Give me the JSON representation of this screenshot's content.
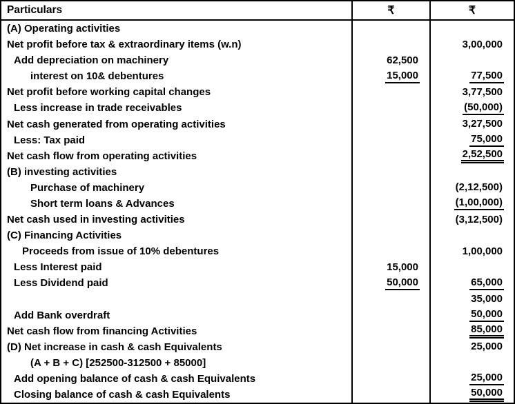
{
  "table": {
    "header": {
      "particulars": "Particulars",
      "amount_col1": "₹",
      "amount_col2": "₹"
    },
    "rows": [
      {
        "label": "(A) Operating activities",
        "indent": 0
      },
      {
        "label": "Net profit before tax & extraordinary items (w.n)",
        "indent": 0,
        "col2": "3,00,000"
      },
      {
        "label": "Add depreciation on machinery",
        "indent": 1,
        "col1": "62,500"
      },
      {
        "label": "interest on 10& debentures",
        "indent": 3,
        "col1": "15,000",
        "col1_u": "single",
        "col2": "77,500",
        "col2_u": "single"
      },
      {
        "label": "Net profit before working capital changes",
        "indent": 0,
        "col2": "3,77,500"
      },
      {
        "label": "Less increase in trade receivables",
        "indent": 1,
        "col2": "(50,000)",
        "col2_u": "single"
      },
      {
        "label": "Net cash generated from operating activities",
        "indent": 0,
        "col2": "3,27,500"
      },
      {
        "label": "Less: Tax paid",
        "indent": 1,
        "col2": "75,000",
        "col2_u": "single"
      },
      {
        "label": "Net cash flow from operating activities",
        "indent": 0,
        "col2": "2,52,500",
        "col2_u": "double"
      },
      {
        "label": "(B) investing activities",
        "indent": 0
      },
      {
        "label": "Purchase of machinery",
        "indent": 3,
        "col2": "(2,12,500)"
      },
      {
        "label": "Short term loans & Advances",
        "indent": 3,
        "col2": "(1,00,000)",
        "col2_u": "single"
      },
      {
        "label": "Net cash used in investing activities",
        "indent": 0,
        "col2": "(3,12,500)"
      },
      {
        "label": "(C) Financing Activities",
        "indent": 0
      },
      {
        "label": "Proceeds from issue of 10% debentures",
        "indent": 2,
        "col2": "1,00,000"
      },
      {
        "label": "Less Interest paid",
        "indent": 1,
        "col1": "15,000"
      },
      {
        "label": "Less Dividend paid",
        "indent": 1,
        "col1": "50,000",
        "col1_u": "single",
        "col2": "65,000",
        "col2_u": "single"
      },
      {
        "label": "",
        "indent": 0,
        "col2": "35,000"
      },
      {
        "label": "Add Bank overdraft",
        "indent": 1,
        "col2": "50,000",
        "col2_u": "single"
      },
      {
        "label": "Net cash flow from financing Activities",
        "indent": 0,
        "col2": "85,000",
        "col2_u": "double"
      },
      {
        "label": "(D) Net increase in cash & cash Equivalents",
        "indent": 0,
        "col2": "25,000"
      },
      {
        "label": "(A + B + C) [252500-312500 + 85000]",
        "indent": 3
      },
      {
        "label": "Add opening balance of cash & cash Equivalents",
        "indent": 1,
        "col2": "25,000",
        "col2_u": "single"
      },
      {
        "label": "Closing balance of cash & cash Equivalents",
        "indent": 1,
        "col2": "50,000",
        "col2_u": "double"
      }
    ]
  },
  "colors": {
    "text": "#000000",
    "border": "#000000",
    "background": "#ffffff"
  }
}
